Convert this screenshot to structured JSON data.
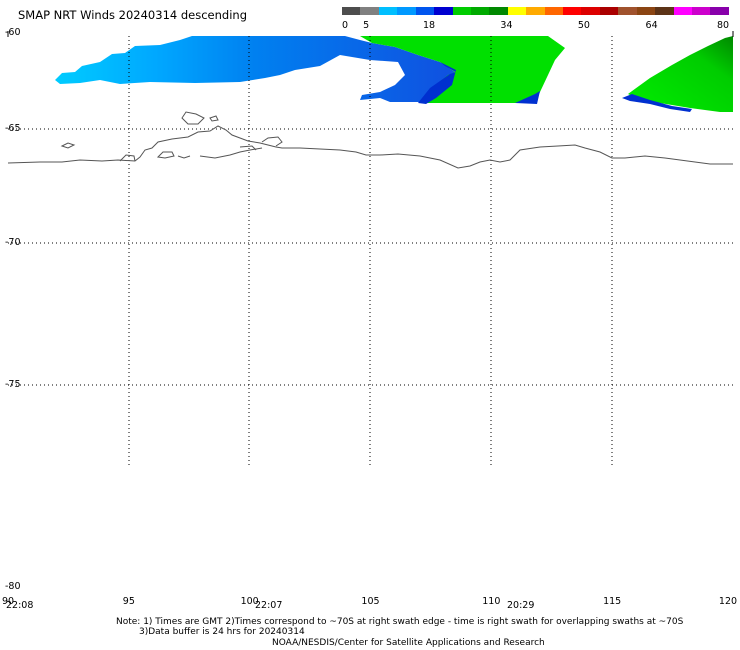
{
  "header": {
    "title": "SMAP NRT Winds  20240314 descending"
  },
  "colorbar": {
    "colors": [
      "#4d4d4d",
      "#808080",
      "#00bfff",
      "#0099ff",
      "#0055ee",
      "#0000d0",
      "#00cc00",
      "#00aa00",
      "#008800",
      "#ffff00",
      "#ffaa00",
      "#ff6600",
      "#ff0000",
      "#dd0000",
      "#aa0000",
      "#a0522d",
      "#8b4513",
      "#5c3317",
      "#ff00ff",
      "#cc00cc",
      "#8800aa"
    ],
    "ticks": [
      {
        "label": "0",
        "value": 0
      },
      {
        "label": "5",
        "value": 5
      },
      {
        "label": "18",
        "value": 18
      },
      {
        "label": "34",
        "value": 34
      },
      {
        "label": "50",
        "value": 50
      },
      {
        "label": "64",
        "value": 64
      },
      {
        "label": "80",
        "value": 80
      }
    ]
  },
  "map": {
    "lat_range": [
      -80,
      -60
    ],
    "lon_range": [
      90,
      120
    ],
    "latitudes": [
      {
        "label": "-60",
        "value": -60
      },
      {
        "label": "-65",
        "value": -65
      },
      {
        "label": "-70",
        "value": -70
      },
      {
        "label": "-75",
        "value": -75
      },
      {
        "label": "-80",
        "value": -80
      }
    ],
    "longitudes": [
      {
        "label": "90",
        "value": 90
      },
      {
        "label": "95",
        "value": 95
      },
      {
        "label": "100",
        "value": 100
      },
      {
        "label": "105",
        "value": 105
      },
      {
        "label": "110",
        "value": 110
      },
      {
        "label": "115",
        "value": 115
      },
      {
        "label": "120",
        "value": 120
      }
    ],
    "swath_times": [
      "22:08",
      "22:07",
      "20:29"
    ]
  },
  "notes": {
    "line1": "Note: 1) Times are GMT 2)Times correspond to ~70S at right swath edge - time is right swath for overlapping swaths at ~70S",
    "line2": "3)Data buffer is 24 hrs for 20240314",
    "line3": "NOAA/NESDIS/Center for Satellite Applications and Research"
  }
}
